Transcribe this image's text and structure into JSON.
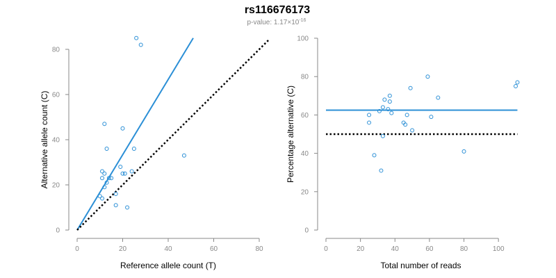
{
  "figure": {
    "title": "rs116676173",
    "subtitle_prefix": "p-value: 1.17×10",
    "subtitle_exponent": "-16"
  },
  "colors": {
    "points": "#2b8fd6",
    "fit_line": "#2b8fd6",
    "reference_line": "#000000",
    "axes": "#888888"
  },
  "chart_data": [
    {
      "type": "scatter",
      "title": "",
      "xlabel": "Reference allele count (T)",
      "ylabel": "Alternative allele count (C)",
      "xlim": [
        0,
        80
      ],
      "ylim": [
        0,
        80
      ],
      "xticks": [
        0,
        20,
        40,
        60,
        80
      ],
      "yticks": [
        0,
        20,
        40,
        60,
        80
      ],
      "grid": false,
      "points": [
        {
          "x": 26,
          "y": 85
        },
        {
          "x": 28,
          "y": 82
        },
        {
          "x": 12,
          "y": 47
        },
        {
          "x": 20,
          "y": 45
        },
        {
          "x": 13,
          "y": 36
        },
        {
          "x": 25,
          "y": 36
        },
        {
          "x": 47,
          "y": 33
        },
        {
          "x": 19,
          "y": 28
        },
        {
          "x": 11,
          "y": 26
        },
        {
          "x": 12,
          "y": 25
        },
        {
          "x": 20,
          "y": 25
        },
        {
          "x": 21,
          "y": 25
        },
        {
          "x": 24,
          "y": 26
        },
        {
          "x": 11,
          "y": 23
        },
        {
          "x": 14,
          "y": 23
        },
        {
          "x": 15,
          "y": 23
        },
        {
          "x": 13,
          "y": 21
        },
        {
          "x": 12,
          "y": 19
        },
        {
          "x": 17,
          "y": 16
        },
        {
          "x": 10,
          "y": 15
        },
        {
          "x": 11,
          "y": 14
        },
        {
          "x": 17,
          "y": 11
        },
        {
          "x": 22,
          "y": 10
        }
      ],
      "lines": [
        {
          "style": "solid",
          "color": "#2b8fd6",
          "x": [
            0,
            51
          ],
          "y": [
            0,
            85
          ]
        },
        {
          "style": "dotted",
          "color": "#000000",
          "x": [
            0,
            84
          ],
          "y": [
            0,
            84
          ]
        }
      ]
    },
    {
      "type": "scatter",
      "title": "",
      "xlabel": "Total number of reads",
      "ylabel": "Percentage alternative (C)",
      "xlim": [
        0,
        110
      ],
      "ylim": [
        0,
        100
      ],
      "xticks": [
        0,
        20,
        40,
        60,
        80,
        100
      ],
      "yticks": [
        0,
        20,
        40,
        60,
        80,
        100
      ],
      "grid": false,
      "points": [
        {
          "x": 25,
          "y": 60
        },
        {
          "x": 25,
          "y": 56
        },
        {
          "x": 28,
          "y": 39
        },
        {
          "x": 31,
          "y": 62
        },
        {
          "x": 32,
          "y": 31
        },
        {
          "x": 33,
          "y": 49
        },
        {
          "x": 33,
          "y": 64
        },
        {
          "x": 34,
          "y": 68
        },
        {
          "x": 36,
          "y": 63
        },
        {
          "x": 37,
          "y": 70
        },
        {
          "x": 37,
          "y": 67
        },
        {
          "x": 38,
          "y": 61
        },
        {
          "x": 45,
          "y": 56
        },
        {
          "x": 46,
          "y": 55
        },
        {
          "x": 47,
          "y": 60
        },
        {
          "x": 49,
          "y": 74
        },
        {
          "x": 50,
          "y": 52
        },
        {
          "x": 59,
          "y": 80
        },
        {
          "x": 61,
          "y": 59
        },
        {
          "x": 65,
          "y": 69
        },
        {
          "x": 80,
          "y": 41
        },
        {
          "x": 110,
          "y": 75
        },
        {
          "x": 111,
          "y": 77
        }
      ],
      "lines": [
        {
          "style": "solid",
          "color": "#2b8fd6",
          "x": [
            0,
            111
          ],
          "y": [
            62.5,
            62.5
          ]
        },
        {
          "style": "dotted",
          "color": "#000000",
          "x": [
            0,
            111
          ],
          "y": [
            50,
            50
          ]
        }
      ]
    }
  ]
}
